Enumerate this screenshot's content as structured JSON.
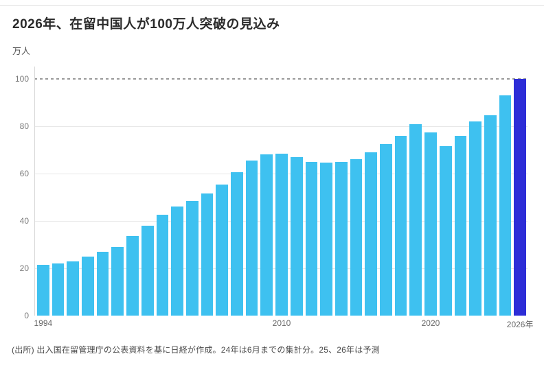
{
  "header": {
    "title": "2026年、在留中国人が100万人突破の見込み"
  },
  "chart": {
    "unit_label": "万人",
    "source_note": "(出所) 出入国在留管理庁の公表資料を基に日経が作成。24年は6月までの集計分。25、26年は予測"
  },
  "chart_data": {
    "type": "bar",
    "title": "2026年、在留中国人が100万人突破の見込み",
    "xlabel": "",
    "ylabel": "万人",
    "ylim": [
      0,
      100
    ],
    "yticks": [
      0,
      20,
      40,
      60,
      80,
      100
    ],
    "grid": "horizontal",
    "reference_line": {
      "value": 100,
      "style": "dashed",
      "color": "#999999"
    },
    "legend": "none",
    "categories": [
      1994,
      1995,
      1996,
      1997,
      1998,
      1999,
      2000,
      2001,
      2002,
      2003,
      2004,
      2005,
      2006,
      2007,
      2008,
      2009,
      2010,
      2011,
      2012,
      2013,
      2014,
      2015,
      2016,
      2017,
      2018,
      2019,
      2020,
      2021,
      2022,
      2023,
      2024,
      2025,
      2026
    ],
    "values": [
      21.5,
      22,
      23,
      25,
      27,
      29,
      33.5,
      38,
      42.5,
      46,
      48.5,
      51.5,
      55.5,
      60.5,
      65.5,
      68,
      68.5,
      67,
      65,
      64.5,
      65,
      66,
      69,
      72.5,
      76,
      81,
      77.5,
      71.5,
      76,
      82,
      84.5,
      93,
      100
    ],
    "x_axis_ticks": [
      {
        "year": 1994,
        "label": "1994"
      },
      {
        "year": 2010,
        "label": "2010"
      },
      {
        "year": 2020,
        "label": "2020"
      },
      {
        "year": 2026,
        "label": "2026年"
      }
    ],
    "bar_color": "#3EC1F0",
    "highlight_color": "#2D2DD7",
    "highlight_year": 2026,
    "forecast_years": [
      2025,
      2026
    ]
  }
}
